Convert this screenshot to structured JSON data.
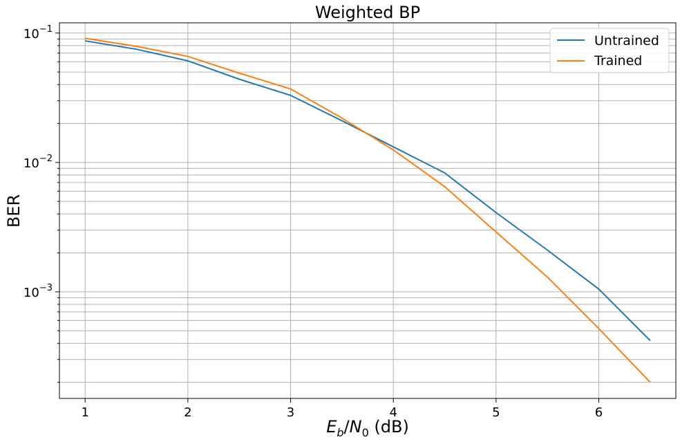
{
  "chart_data": {
    "type": "line",
    "title": "Weighted BP",
    "xlabel_parts": {
      "E": "E",
      "b": "b",
      "slash": "/",
      "N": "N",
      "zero": "0",
      "unit": " (dB)"
    },
    "ylabel": "BER",
    "x": [
      1,
      1.5,
      2,
      2.5,
      3,
      3.5,
      4,
      4.5,
      5,
      5.5,
      6,
      6.5
    ],
    "xlim": [
      0.75,
      6.75
    ],
    "ylim": [
      0.00015,
      0.12
    ],
    "yscale": "log",
    "xticks": [
      1,
      2,
      3,
      4,
      5,
      6
    ],
    "xtick_labels": [
      "1",
      "2",
      "3",
      "4",
      "5",
      "6"
    ],
    "yticks": [
      0.001,
      0.01,
      0.1
    ],
    "ytick_labels": [
      {
        "base": "10",
        "exp": "−3"
      },
      {
        "base": "10",
        "exp": "−2"
      },
      {
        "base": "10",
        "exp": "−1"
      }
    ],
    "grid": true,
    "legend_position": "top-right",
    "series": [
      {
        "name": "Untrained",
        "color": "#1f77b4",
        "values": [
          0.087,
          0.075,
          0.061,
          0.044,
          0.033,
          0.021,
          0.0132,
          0.0083,
          0.0041,
          0.0021,
          0.00105,
          0.00042
        ]
      },
      {
        "name": "Trained",
        "color": "#ff7f0e",
        "values": [
          0.091,
          0.079,
          0.066,
          0.049,
          0.037,
          0.022,
          0.0125,
          0.0065,
          0.0029,
          0.0013,
          0.00052,
          0.0002
        ]
      }
    ]
  }
}
